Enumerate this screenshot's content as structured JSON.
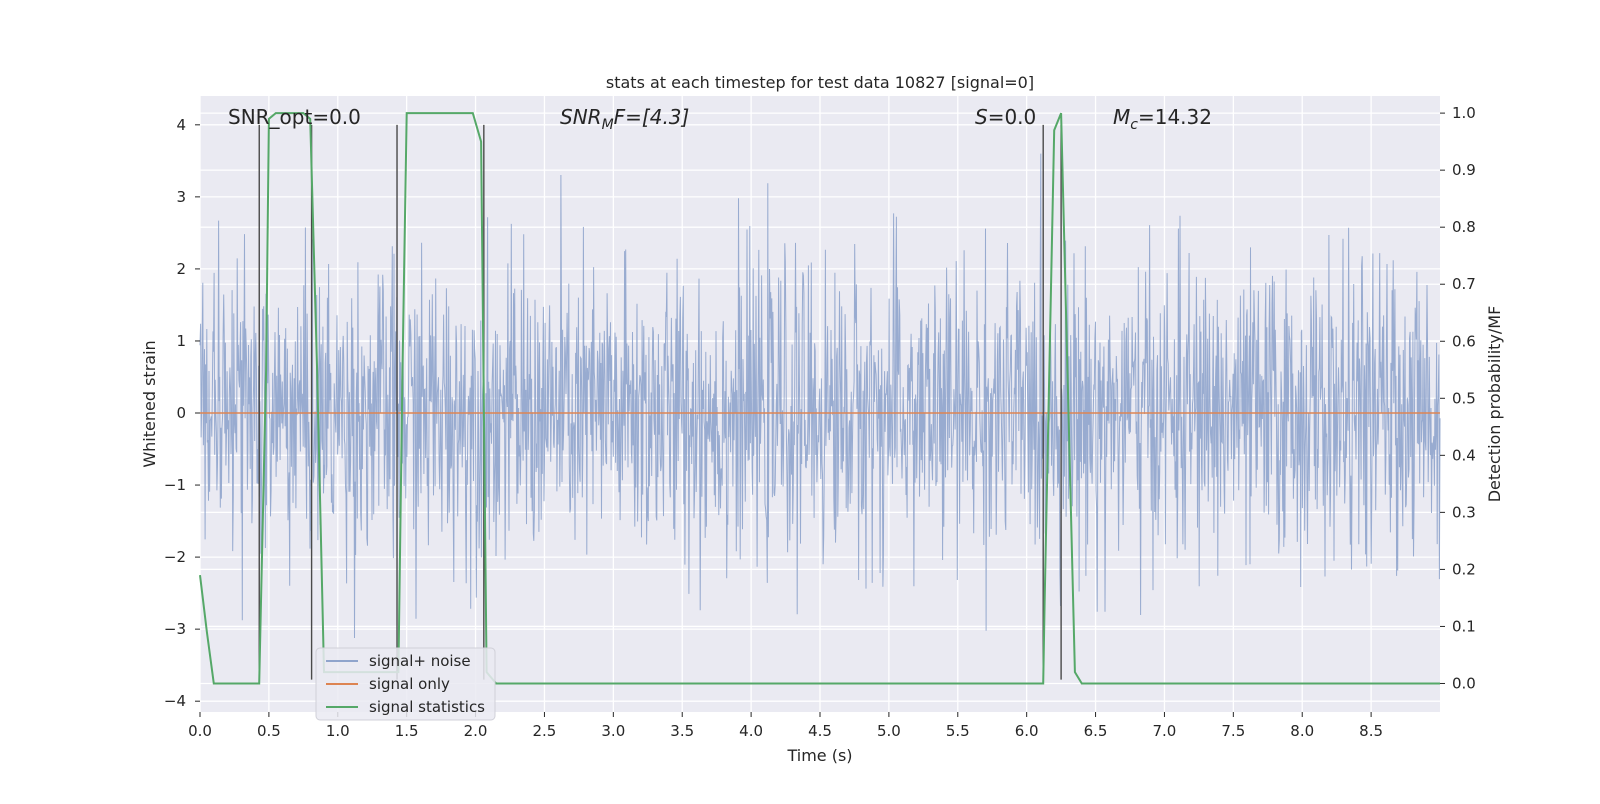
{
  "chart_data": {
    "type": "line",
    "title": "stats at each timestep for test data 10827 [signal=0]",
    "xlabel": "Time (s)",
    "ylabel": "Whitened strain",
    "ylabel_right": "Detection probability/MF",
    "xlim": [
      0,
      9.0
    ],
    "ylim": [
      -4.15,
      4.4
    ],
    "ylim_right": [
      -0.05,
      1.03
    ],
    "x_ticks": [
      "0.0",
      "0.5",
      "1.0",
      "1.5",
      "2.0",
      "2.5",
      "3.0",
      "3.5",
      "4.0",
      "4.5",
      "5.0",
      "5.5",
      "6.0",
      "6.5",
      "7.0",
      "7.5",
      "8.0",
      "8.5"
    ],
    "y_ticks": [
      "4",
      "3",
      "2",
      "1",
      "0",
      "−1",
      "−2",
      "−3",
      "−4"
    ],
    "y_right_ticks": [
      "1.0",
      "0.9",
      "0.8",
      "0.7",
      "0.6",
      "0.5",
      "0.4",
      "0.3",
      "0.2",
      "0.1",
      "0.0"
    ],
    "grid": true,
    "legend_position": "lower-left",
    "annotations": {
      "snr_opt": "SNR_opt=0.0",
      "snr_mf_main": "SNR",
      "snr_mf_sub": "M",
      "snr_mf_rest": "F=[4.3]",
      "s_main": "S",
      "s_rest": "=0.0",
      "mc_main": "M",
      "mc_sub": "c",
      "mc_rest": "=14.32"
    },
    "series": [
      {
        "name": "signal+ noise",
        "color": "#8fa4cc",
        "description_values": "random whitened noise, amplitude roughly ±2 with spikes to about ±3.5"
      },
      {
        "name": "signal only",
        "color": "#dd8452",
        "values_constant": 0
      },
      {
        "name": "signal statistics",
        "color": "#55a868",
        "axis": "right",
        "x": [
          0.0,
          0.05,
          0.1,
          0.43,
          0.48,
          0.5,
          0.55,
          0.75,
          0.8,
          0.85,
          0.9,
          1.44,
          1.47,
          1.5,
          1.98,
          2.04,
          2.08,
          2.15,
          2.2,
          6.12,
          6.13,
          6.2,
          6.25,
          6.35,
          6.4,
          9.0
        ],
        "values": [
          0.19,
          0.09,
          0.0,
          0.0,
          0.55,
          0.99,
          1.0,
          1.0,
          0.99,
          0.55,
          0.02,
          0.02,
          0.55,
          1.0,
          1.0,
          0.95,
          0.02,
          0.0,
          0.0,
          0.0,
          0.14,
          0.97,
          1.0,
          0.02,
          0.0,
          0.0
        ]
      }
    ],
    "vertical_markers_x": [
      0.43,
      0.81,
      1.43,
      2.06,
      6.12,
      6.25
    ]
  },
  "legend": {
    "items": [
      "signal+ noise",
      "signal only",
      "signal statistics"
    ]
  }
}
